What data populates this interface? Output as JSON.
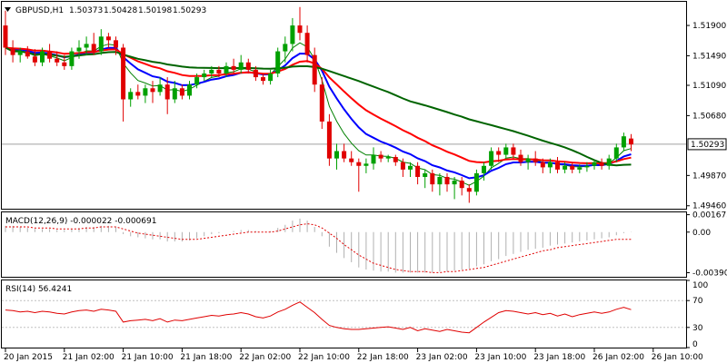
{
  "chart_data": [
    {
      "type": "candlestick",
      "title": "GBPUSD,H1",
      "ohlc_header": [
        "1.50373",
        "1.50428",
        "1.50198",
        "1.50293"
      ],
      "y_ticks": [
        "1.51900",
        "1.51490",
        "1.51090",
        "1.50680",
        "1.49870",
        "1.49460"
      ],
      "y_tick_values": [
        1.519,
        1.5149,
        1.5109,
        1.5068,
        1.4987,
        1.4946
      ],
      "ylim": [
        1.4942,
        1.5222
      ],
      "current_price_label": "1.50293",
      "current_price": 1.50293,
      "x_labels": [
        "20 Jan 2015",
        "21 Jan 02:00",
        "21 Jan 10:00",
        "21 Jan 18:00",
        "22 Jan 02:00",
        "22 Jan 10:00",
        "22 Jan 18:00",
        "23 Jan 02:00",
        "23 Jan 10:00",
        "23 Jan 18:00",
        "26 Jan 02:00",
        "26 Jan 10:00"
      ],
      "x_label_index": [
        0,
        8,
        16,
        24,
        32,
        40,
        48,
        56,
        64,
        72,
        80,
        88
      ],
      "candles": [
        [
          1.519,
          1.521,
          1.515,
          1.516
        ],
        [
          1.516,
          1.517,
          1.514,
          1.515
        ],
        [
          1.515,
          1.516,
          1.514,
          1.5155
        ],
        [
          1.5155,
          1.5162,
          1.5145,
          1.5148
        ],
        [
          1.5148,
          1.5158,
          1.5135,
          1.514
        ],
        [
          1.514,
          1.516,
          1.5135,
          1.5155
        ],
        [
          1.5155,
          1.5165,
          1.514,
          1.5145
        ],
        [
          1.5145,
          1.5155,
          1.5135,
          1.514
        ],
        [
          1.514,
          1.515,
          1.513,
          1.5135
        ],
        [
          1.5135,
          1.516,
          1.513,
          1.5155
        ],
        [
          1.5155,
          1.517,
          1.5145,
          1.516
        ],
        [
          1.516,
          1.5175,
          1.515,
          1.5165
        ],
        [
          1.5165,
          1.518,
          1.515,
          1.5155
        ],
        [
          1.5155,
          1.5185,
          1.515,
          1.5175
        ],
        [
          1.5175,
          1.518,
          1.516,
          1.517
        ],
        [
          1.517,
          1.5175,
          1.515,
          1.516
        ],
        [
          1.516,
          1.5165,
          1.506,
          1.509
        ],
        [
          1.509,
          1.5105,
          1.508,
          1.51
        ],
        [
          1.51,
          1.511,
          1.509,
          1.5095
        ],
        [
          1.5095,
          1.511,
          1.5085,
          1.5105
        ],
        [
          1.5105,
          1.5115,
          1.5085,
          1.51
        ],
        [
          1.51,
          1.512,
          1.5095,
          1.511
        ],
        [
          1.511,
          1.512,
          1.507,
          1.509
        ],
        [
          1.509,
          1.5115,
          1.5085,
          1.5105
        ],
        [
          1.5105,
          1.511,
          1.509,
          1.5095
        ],
        [
          1.5095,
          1.5115,
          1.509,
          1.511
        ],
        [
          1.511,
          1.5125,
          1.5105,
          1.512
        ],
        [
          1.512,
          1.513,
          1.5115,
          1.5125
        ],
        [
          1.5125,
          1.5135,
          1.512,
          1.513
        ],
        [
          1.513,
          1.5135,
          1.512,
          1.5125
        ],
        [
          1.5125,
          1.514,
          1.512,
          1.5135
        ],
        [
          1.5135,
          1.5145,
          1.5125,
          1.513
        ],
        [
          1.513,
          1.515,
          1.5125,
          1.514
        ],
        [
          1.514,
          1.5145,
          1.5125,
          1.513
        ],
        [
          1.513,
          1.5135,
          1.5115,
          1.512
        ],
        [
          1.512,
          1.5125,
          1.511,
          1.5115
        ],
        [
          1.5115,
          1.513,
          1.511,
          1.5125
        ],
        [
          1.5125,
          1.516,
          1.512,
          1.5155
        ],
        [
          1.5155,
          1.5175,
          1.514,
          1.5165
        ],
        [
          1.5165,
          1.52,
          1.5155,
          1.519
        ],
        [
          1.519,
          1.5215,
          1.517,
          1.518
        ],
        [
          1.518,
          1.519,
          1.514,
          1.515
        ],
        [
          1.515,
          1.516,
          1.51,
          1.511
        ],
        [
          1.511,
          1.512,
          1.505,
          1.506
        ],
        [
          1.506,
          1.507,
          1.5,
          1.501
        ],
        [
          1.501,
          1.503,
          1.4995,
          1.502
        ],
        [
          1.502,
          1.503,
          1.5005,
          1.501
        ],
        [
          1.501,
          1.502,
          1.5,
          1.5005
        ],
        [
          1.5005,
          1.501,
          1.4965,
          1.5
        ],
        [
          1.5,
          1.501,
          1.499,
          1.5003
        ],
        [
          1.5003,
          1.5025,
          1.4995,
          1.5015
        ],
        [
          1.5015,
          1.502,
          1.5005,
          1.501
        ],
        [
          1.501,
          1.5015,
          1.5005,
          1.5012
        ],
        [
          1.5012,
          1.5015,
          1.5,
          1.5005
        ],
        [
          1.5005,
          1.501,
          1.4985,
          1.4995
        ],
        [
          1.4995,
          1.5005,
          1.4985,
          1.5
        ],
        [
          1.5,
          1.5005,
          1.4975,
          1.4985
        ],
        [
          1.4985,
          1.4995,
          1.497,
          1.499
        ],
        [
          1.499,
          1.4995,
          1.4965,
          1.4975
        ],
        [
          1.4975,
          1.499,
          1.496,
          1.4985
        ],
        [
          1.4985,
          1.499,
          1.4965,
          1.4975
        ],
        [
          1.4975,
          1.4985,
          1.4955,
          1.498
        ],
        [
          1.498,
          1.4985,
          1.496,
          1.497
        ],
        [
          1.497,
          1.4975,
          1.495,
          1.4965
        ],
        [
          1.4965,
          1.4995,
          1.496,
          1.499
        ],
        [
          1.499,
          1.5005,
          1.498,
          1.5
        ],
        [
          1.5,
          1.5025,
          1.4995,
          1.502
        ],
        [
          1.502,
          1.5025,
          1.5005,
          1.5015
        ],
        [
          1.5015,
          1.503,
          1.501,
          1.5025
        ],
        [
          1.5025,
          1.503,
          1.501,
          1.5015
        ],
        [
          1.5015,
          1.5022,
          1.5,
          1.5005
        ],
        [
          1.5005,
          1.5015,
          1.4995,
          1.501
        ],
        [
          1.501,
          1.502,
          1.5,
          1.5005
        ],
        [
          1.5005,
          1.501,
          1.499,
          1.4998
        ],
        [
          1.4998,
          1.501,
          1.499,
          1.5005
        ],
        [
          1.5005,
          1.5012,
          1.499,
          1.4995
        ],
        [
          1.4995,
          1.5005,
          1.499,
          1.5
        ],
        [
          1.5,
          1.5005,
          1.499,
          1.4995
        ],
        [
          1.4995,
          1.5002,
          1.499,
          1.4998
        ],
        [
          1.4998,
          1.5005,
          1.4992,
          1.5
        ],
        [
          1.5,
          1.5008,
          1.4995,
          1.5005
        ],
        [
          1.5005,
          1.501,
          1.4995,
          1.5
        ],
        [
          1.5,
          1.5015,
          1.4995,
          1.501
        ],
        [
          1.501,
          1.503,
          1.5005,
          1.5025
        ],
        [
          1.5025,
          1.5045,
          1.502,
          1.504
        ],
        [
          1.5037,
          1.5043,
          1.502,
          1.5029
        ]
      ],
      "ma_colors": [
        "#008000",
        "#0000ff",
        "#ff0000",
        "#006400"
      ]
    },
    {
      "type": "histogram+line",
      "title": "MACD(12,26,9) -0.000022 -0.000691",
      "y_ticks": [
        "0.001675",
        "0.00",
        "-0.003907"
      ],
      "y_tick_values": [
        0.001675,
        0.0,
        -0.003907
      ],
      "ylim": [
        -0.0043,
        0.0019
      ],
      "macd": [
        0.0006,
        0.0006,
        0.0005,
        0.0004,
        0.0003,
        0.0003,
        0.0003,
        0.0002,
        0.0002,
        0.0003,
        0.0004,
        0.0005,
        0.0005,
        0.0006,
        0.0006,
        0.0005,
        -0.0002,
        -0.0004,
        -0.0005,
        -0.0006,
        -0.0007,
        -0.0007,
        -0.0009,
        -0.0009,
        -0.0009,
        -0.0008,
        -0.0006,
        -0.0004,
        -0.0002,
        -0.0001,
        0.0,
        0.0001,
        0.0002,
        0.0002,
        0.0001,
        0.0,
        0.0001,
        0.0004,
        0.0007,
        0.0011,
        0.0013,
        0.0011,
        0.0005,
        -0.0004,
        -0.0014,
        -0.002,
        -0.0025,
        -0.0029,
        -0.0034,
        -0.0036,
        -0.0037,
        -0.0038,
        -0.0038,
        -0.0039,
        -0.0039,
        -0.0039,
        -0.0039,
        -0.0039,
        -0.0039,
        -0.0038,
        -0.0038,
        -0.0037,
        -0.0036,
        -0.0035,
        -0.0033,
        -0.0031,
        -0.0028,
        -0.0026,
        -0.0023,
        -0.0021,
        -0.0019,
        -0.0017,
        -0.0016,
        -0.0015,
        -0.0013,
        -0.0012,
        -0.0011,
        -0.001,
        -0.0009,
        -0.0008,
        -0.0007,
        -0.0006,
        -0.0005,
        -0.0003,
        -0.0001,
        -2e-05
      ],
      "signal": [
        0.0005,
        0.0005,
        0.0005,
        0.0005,
        0.0004,
        0.0004,
        0.0004,
        0.0003,
        0.0003,
        0.0003,
        0.0003,
        0.0004,
        0.0004,
        0.0005,
        0.0005,
        0.0005,
        0.0003,
        0.0001,
        -0.0001,
        -0.0002,
        -0.0003,
        -0.0004,
        -0.0005,
        -0.0006,
        -0.0007,
        -0.0007,
        -0.0007,
        -0.0006,
        -0.0005,
        -0.0004,
        -0.0003,
        -0.0002,
        -0.0001,
        0.0,
        0.0,
        0.0,
        0.0,
        0.0001,
        0.0003,
        0.0005,
        0.0007,
        0.0008,
        0.0007,
        0.0004,
        -0.0001,
        -0.0006,
        -0.0012,
        -0.0017,
        -0.0022,
        -0.0026,
        -0.003,
        -0.0032,
        -0.0034,
        -0.0036,
        -0.0037,
        -0.0038,
        -0.0038,
        -0.0038,
        -0.0039,
        -0.0039,
        -0.0038,
        -0.0038,
        -0.0037,
        -0.0036,
        -0.0035,
        -0.0034,
        -0.0032,
        -0.003,
        -0.0028,
        -0.0026,
        -0.0024,
        -0.0022,
        -0.002,
        -0.0018,
        -0.0017,
        -0.0015,
        -0.0014,
        -0.0013,
        -0.0012,
        -0.0011,
        -0.001,
        -0.0009,
        -0.0008,
        -0.0007,
        -0.0007,
        -0.0007
      ]
    },
    {
      "type": "line",
      "title": "RSI(14) 56.4241",
      "y_ticks": [
        "100",
        "70",
        "30",
        "0"
      ],
      "y_tick_values": [
        100,
        70,
        30,
        0
      ],
      "ylim": [
        0,
        100
      ],
      "levels": [
        70,
        30
      ],
      "values": [
        56,
        55,
        53,
        54,
        52,
        54,
        53,
        51,
        50,
        53,
        55,
        56,
        54,
        57,
        56,
        54,
        38,
        40,
        41,
        42,
        40,
        43,
        38,
        41,
        40,
        42,
        44,
        46,
        48,
        47,
        49,
        50,
        52,
        50,
        46,
        44,
        47,
        53,
        57,
        63,
        68,
        60,
        52,
        42,
        33,
        30,
        28,
        27,
        27,
        28,
        29,
        30,
        31,
        29,
        27,
        30,
        25,
        28,
        26,
        24,
        27,
        25,
        23,
        22,
        30,
        38,
        45,
        52,
        55,
        54,
        52,
        50,
        52,
        49,
        51,
        47,
        50,
        46,
        49,
        51,
        53,
        51,
        53,
        57,
        60,
        56.4241
      ]
    }
  ]
}
